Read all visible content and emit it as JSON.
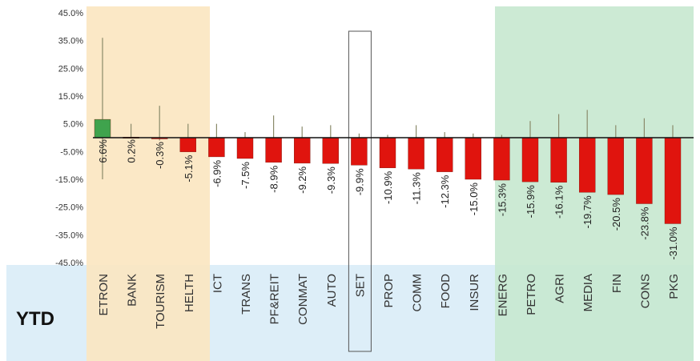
{
  "chart_data": {
    "type": "bar",
    "title": "",
    "xlabel": "",
    "ylabel": "",
    "row_label": "YTD",
    "ylim": [
      -45,
      45
    ],
    "yticks": [
      "45.0%",
      "35.0%",
      "25.0%",
      "15.0%",
      "5.0%",
      "-5.0%",
      "-15.0%",
      "-25.0%",
      "-35.0%",
      "-45.0%"
    ],
    "ytick_values": [
      45,
      35,
      25,
      15,
      5,
      -5,
      -15,
      -25,
      -35,
      -45
    ],
    "categories": [
      "ETRON",
      "BANK",
      "TOURISM",
      "HELTH",
      "ICT",
      "TRANS",
      "PF&REIT",
      "CONMAT",
      "AUTO",
      "SET",
      "PROP",
      "COMM",
      "FOOD",
      "INSUR",
      "ENERG",
      "PETRO",
      "AGRI",
      "MEDIA",
      "FIN",
      "CONS",
      "PKG"
    ],
    "values": [
      6.6,
      0.2,
      -0.3,
      -5.1,
      -6.9,
      -7.5,
      -8.9,
      -9.2,
      -9.3,
      -9.9,
      -10.9,
      -11.3,
      -12.3,
      -15.0,
      -15.3,
      -15.9,
      -16.1,
      -19.7,
      -20.5,
      -23.8,
      -31.0
    ],
    "labels": [
      "6.6%",
      "0.2%",
      "-0.3%",
      "-5.1%",
      "-6.9%",
      "-7.5%",
      "-8.9%",
      "-9.2%",
      "-9.3%",
      "-9.9%",
      "-10.9%",
      "-11.3%",
      "-12.3%",
      "-15.0%",
      "-15.3%",
      "-15.9%",
      "-16.1%",
      "-19.7%",
      "-20.5%",
      "-23.8%",
      "-31.0%"
    ],
    "range_high": [
      36,
      5,
      11.5,
      5,
      5,
      2,
      8,
      4,
      4.5,
      1.5,
      1,
      4.5,
      2,
      1.5,
      1,
      6,
      8.5,
      10,
      4.5,
      7,
      4.5
    ],
    "range_low": [
      -15,
      0,
      -1,
      -5.1,
      -6.9,
      -7.5,
      -8.9,
      -9.2,
      -9.3,
      -9.9,
      -10.9,
      -11.3,
      -12.3,
      -15.0,
      -15.3,
      -15.9,
      -16.1,
      -19.7,
      -20.5,
      -23.8,
      -31.0
    ],
    "highlighted_category": "SET",
    "groups": [
      {
        "name": "leaders",
        "from": 0,
        "to": 3,
        "color": "#fbe5c0"
      },
      {
        "name": "middle",
        "from": 4,
        "to": 13,
        "color": "#e1f0f9"
      },
      {
        "name": "laggards",
        "from": 14,
        "to": 20,
        "color": "#c7e8cf"
      }
    ],
    "colors": {
      "positive": "#3fa34d",
      "negative": "#e0140e",
      "whisker": "#8a8a6a",
      "axis": "#111111",
      "label_band": "#ddeef8",
      "plot_middle": "#ffffff",
      "highlight_border": "#555555"
    },
    "grid": false,
    "legend": "none"
  }
}
